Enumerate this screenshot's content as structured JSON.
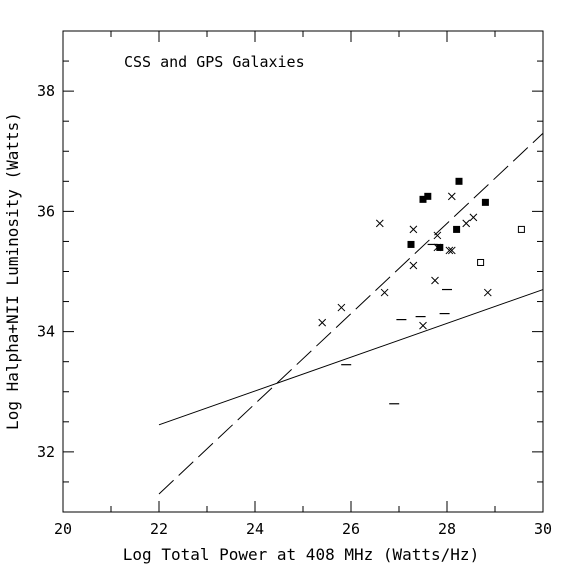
{
  "chart_data": {
    "type": "scatter",
    "title": "CSS and GPS Galaxies",
    "xlabel": "Log Total  Power at 408 MHz (Watts/Hz)",
    "ylabel": "Log Halpha+NII Luminosity (Watts)",
    "xlim": [
      20,
      30
    ],
    "ylim": [
      31,
      39
    ],
    "x_ticks": [
      "20",
      "22",
      "24",
      "26",
      "28",
      "30"
    ],
    "y_ticks": [
      "32",
      "34",
      "36",
      "38"
    ],
    "grid": false,
    "series": [
      {
        "marker": "filled-square",
        "points": [
          {
            "x": 27.25,
            "y": 35.45
          },
          {
            "x": 27.5,
            "y": 36.2
          },
          {
            "x": 27.6,
            "y": 36.25
          },
          {
            "x": 27.85,
            "y": 35.4
          },
          {
            "x": 28.2,
            "y": 35.7
          },
          {
            "x": 28.25,
            "y": 36.5
          },
          {
            "x": 28.8,
            "y": 36.15
          }
        ]
      },
      {
        "marker": "open-square",
        "points": [
          {
            "x": 28.7,
            "y": 35.15
          },
          {
            "x": 29.55,
            "y": 35.7
          }
        ]
      },
      {
        "marker": "cross",
        "points": [
          {
            "x": 25.4,
            "y": 34.15
          },
          {
            "x": 25.8,
            "y": 34.4
          },
          {
            "x": 26.6,
            "y": 35.8
          },
          {
            "x": 26.7,
            "y": 34.65
          },
          {
            "x": 27.3,
            "y": 35.1
          },
          {
            "x": 27.3,
            "y": 35.7
          },
          {
            "x": 27.5,
            "y": 34.1
          },
          {
            "x": 27.75,
            "y": 34.85
          },
          {
            "x": 27.8,
            "y": 35.4
          },
          {
            "x": 27.8,
            "y": 35.6
          },
          {
            "x": 28.05,
            "y": 35.35
          },
          {
            "x": 28.1,
            "y": 35.35
          },
          {
            "x": 28.1,
            "y": 36.25
          },
          {
            "x": 28.4,
            "y": 35.8
          },
          {
            "x": 28.55,
            "y": 35.9
          },
          {
            "x": 28.85,
            "y": 34.65
          }
        ]
      },
      {
        "marker": "dash",
        "points": [
          {
            "x": 25.9,
            "y": 33.45
          },
          {
            "x": 26.9,
            "y": 32.8
          },
          {
            "x": 27.05,
            "y": 34.2
          },
          {
            "x": 27.45,
            "y": 34.25
          },
          {
            "x": 27.95,
            "y": 34.3
          },
          {
            "x": 28.0,
            "y": 34.7
          },
          {
            "x": 27.7,
            "y": 35.45
          }
        ]
      }
    ],
    "lines": [
      {
        "style": "solid",
        "from": [
          22,
          32.45
        ],
        "to": [
          30,
          34.7
        ]
      },
      {
        "style": "dashed",
        "from": [
          22,
          31.3
        ],
        "to": [
          30,
          37.3
        ]
      }
    ]
  }
}
